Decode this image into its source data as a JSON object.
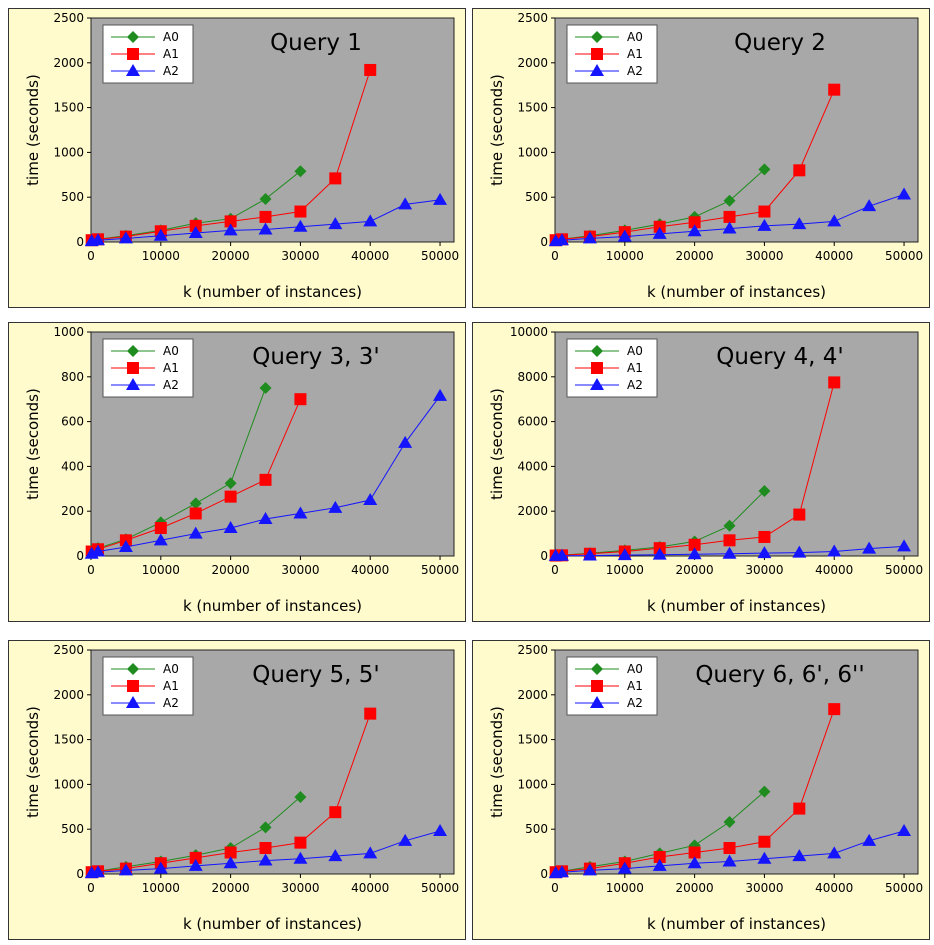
{
  "colors": {
    "panel_bg": "#fffbcc",
    "plot_bg": "#a8a8a8",
    "A0": "#1f8c1f",
    "A1": "#ff0000",
    "A2": "#1414ff"
  },
  "chart_data": [
    {
      "type": "line",
      "title": "Query 1",
      "xlabel": "k (number of instances)",
      "ylabel": "time (seconds)",
      "xlim": [
        0,
        52000
      ],
      "ylim": [
        0,
        2500
      ],
      "xticks": [
        0,
        10000,
        20000,
        30000,
        40000,
        50000
      ],
      "yticks": [
        0,
        500,
        1000,
        1500,
        2000,
        2500
      ],
      "legend_position": "top-left",
      "grid": false,
      "series": [
        {
          "name": "A0",
          "marker": "diamond",
          "x": [
            100,
            1000,
            5000,
            10000,
            15000,
            20000,
            25000,
            30000
          ],
          "y": [
            20,
            30,
            70,
            130,
            210,
            260,
            480,
            790
          ]
        },
        {
          "name": "A1",
          "marker": "square",
          "x": [
            100,
            1000,
            5000,
            10000,
            15000,
            20000,
            25000,
            30000,
            35000,
            40000
          ],
          "y": [
            20,
            30,
            60,
            120,
            180,
            230,
            280,
            340,
            710,
            1920
          ]
        },
        {
          "name": "A2",
          "marker": "triangle",
          "x": [
            100,
            1000,
            5000,
            10000,
            15000,
            20000,
            25000,
            30000,
            35000,
            40000,
            45000,
            50000
          ],
          "y": [
            10,
            20,
            40,
            70,
            100,
            130,
            140,
            170,
            200,
            230,
            420,
            470
          ]
        }
      ]
    },
    {
      "type": "line",
      "title": "Query 2",
      "xlabel": "k (number of instances)",
      "ylabel": "time (seconds)",
      "xlim": [
        0,
        52000
      ],
      "ylim": [
        0,
        2500
      ],
      "xticks": [
        0,
        10000,
        20000,
        30000,
        40000,
        50000
      ],
      "yticks": [
        0,
        500,
        1000,
        1500,
        2000,
        2500
      ],
      "legend_position": "top-left",
      "grid": false,
      "series": [
        {
          "name": "A0",
          "marker": "diamond",
          "x": [
            100,
            1000,
            5000,
            10000,
            15000,
            20000,
            25000,
            30000
          ],
          "y": [
            20,
            30,
            70,
            130,
            200,
            280,
            460,
            810
          ]
        },
        {
          "name": "A1",
          "marker": "square",
          "x": [
            100,
            1000,
            5000,
            10000,
            15000,
            20000,
            25000,
            30000,
            35000,
            40000
          ],
          "y": [
            20,
            30,
            60,
            110,
            170,
            220,
            280,
            340,
            800,
            1700
          ]
        },
        {
          "name": "A2",
          "marker": "triangle",
          "x": [
            100,
            1000,
            5000,
            10000,
            15000,
            20000,
            25000,
            30000,
            35000,
            40000,
            45000,
            50000
          ],
          "y": [
            10,
            20,
            40,
            60,
            90,
            120,
            150,
            180,
            200,
            230,
            400,
            530
          ]
        }
      ]
    },
    {
      "type": "line",
      "title": "Query 3, 3'",
      "xlabel": "k (number of instances)",
      "ylabel": "time (seconds)",
      "xlim": [
        0,
        52000
      ],
      "ylim": [
        0,
        1000
      ],
      "xticks": [
        0,
        10000,
        20000,
        30000,
        40000,
        50000
      ],
      "yticks": [
        0,
        200,
        400,
        600,
        800,
        1000
      ],
      "legend_position": "top-left",
      "grid": false,
      "series": [
        {
          "name": "A0",
          "marker": "diamond",
          "x": [
            100,
            1000,
            5000,
            10000,
            15000,
            20000,
            25000
          ],
          "y": [
            25,
            35,
            75,
            150,
            235,
            325,
            750
          ]
        },
        {
          "name": "A1",
          "marker": "square",
          "x": [
            100,
            1000,
            5000,
            10000,
            15000,
            20000,
            25000,
            30000
          ],
          "y": [
            20,
            30,
            70,
            125,
            190,
            265,
            340,
            700
          ]
        },
        {
          "name": "A2",
          "marker": "triangle",
          "x": [
            100,
            1000,
            5000,
            10000,
            15000,
            20000,
            25000,
            30000,
            35000,
            40000,
            45000,
            50000
          ],
          "y": [
            10,
            20,
            40,
            70,
            100,
            125,
            165,
            190,
            215,
            250,
            505,
            715
          ]
        }
      ]
    },
    {
      "type": "line",
      "title": "Query 4, 4'",
      "xlabel": "k (number of instances)",
      "ylabel": "time (seconds)",
      "xlim": [
        0,
        52000
      ],
      "ylim": [
        0,
        10000
      ],
      "xticks": [
        0,
        10000,
        20000,
        30000,
        40000,
        50000
      ],
      "yticks": [
        0,
        2000,
        4000,
        6000,
        8000,
        10000
      ],
      "legend_position": "top-left",
      "grid": false,
      "series": [
        {
          "name": "A0",
          "marker": "diamond",
          "x": [
            100,
            1000,
            5000,
            10000,
            15000,
            20000,
            25000,
            30000
          ],
          "y": [
            20,
            40,
            120,
            250,
            400,
            650,
            1350,
            2900
          ]
        },
        {
          "name": "A1",
          "marker": "square",
          "x": [
            100,
            1000,
            5000,
            10000,
            15000,
            20000,
            25000,
            30000,
            35000,
            40000
          ],
          "y": [
            20,
            30,
            100,
            200,
            350,
            500,
            700,
            850,
            1850,
            7750
          ]
        },
        {
          "name": "A2",
          "marker": "triangle",
          "x": [
            100,
            1000,
            5000,
            10000,
            15000,
            20000,
            25000,
            30000,
            35000,
            40000,
            45000,
            50000
          ],
          "y": [
            5,
            10,
            20,
            40,
            60,
            80,
            100,
            130,
            150,
            200,
            330,
            430
          ]
        }
      ]
    },
    {
      "type": "line",
      "title": "Query 5, 5'",
      "xlabel": "k (number of instances)",
      "ylabel": "time (seconds)",
      "xlim": [
        0,
        52000
      ],
      "ylim": [
        0,
        2500
      ],
      "xticks": [
        0,
        10000,
        20000,
        30000,
        40000,
        50000
      ],
      "yticks": [
        0,
        500,
        1000,
        1500,
        2000,
        2500
      ],
      "legend_position": "top-left",
      "grid": false,
      "series": [
        {
          "name": "A0",
          "marker": "diamond",
          "x": [
            100,
            1000,
            5000,
            10000,
            15000,
            20000,
            25000,
            30000
          ],
          "y": [
            20,
            30,
            80,
            140,
            210,
            290,
            520,
            860
          ]
        },
        {
          "name": "A1",
          "marker": "square",
          "x": [
            100,
            1000,
            5000,
            10000,
            15000,
            20000,
            25000,
            30000,
            35000,
            40000
          ],
          "y": [
            20,
            30,
            60,
            120,
            180,
            240,
            290,
            350,
            690,
            1790
          ]
        },
        {
          "name": "A2",
          "marker": "triangle",
          "x": [
            100,
            1000,
            5000,
            10000,
            15000,
            20000,
            25000,
            30000,
            35000,
            40000,
            45000,
            50000
          ],
          "y": [
            10,
            20,
            40,
            60,
            90,
            120,
            150,
            170,
            200,
            230,
            370,
            480
          ]
        }
      ]
    },
    {
      "type": "line",
      "title": "Query 6, 6', 6''",
      "xlabel": "k (number of instances)",
      "ylabel": "time (seconds)",
      "xlim": [
        0,
        52000
      ],
      "ylim": [
        0,
        2500
      ],
      "xticks": [
        0,
        10000,
        20000,
        30000,
        40000,
        50000
      ],
      "yticks": [
        0,
        500,
        1000,
        1500,
        2000,
        2500
      ],
      "legend_position": "top-left",
      "grid": false,
      "series": [
        {
          "name": "A0",
          "marker": "diamond",
          "x": [
            100,
            1000,
            5000,
            10000,
            15000,
            20000,
            25000,
            30000
          ],
          "y": [
            20,
            30,
            80,
            140,
            230,
            320,
            580,
            920
          ]
        },
        {
          "name": "A1",
          "marker": "square",
          "x": [
            100,
            1000,
            5000,
            10000,
            15000,
            20000,
            25000,
            30000,
            35000,
            40000
          ],
          "y": [
            20,
            30,
            60,
            120,
            190,
            240,
            290,
            360,
            730,
            1840
          ]
        },
        {
          "name": "A2",
          "marker": "triangle",
          "x": [
            100,
            1000,
            5000,
            10000,
            15000,
            20000,
            25000,
            30000,
            35000,
            40000,
            45000,
            50000
          ],
          "y": [
            10,
            20,
            40,
            60,
            90,
            120,
            140,
            170,
            200,
            230,
            370,
            480
          ]
        }
      ]
    }
  ]
}
